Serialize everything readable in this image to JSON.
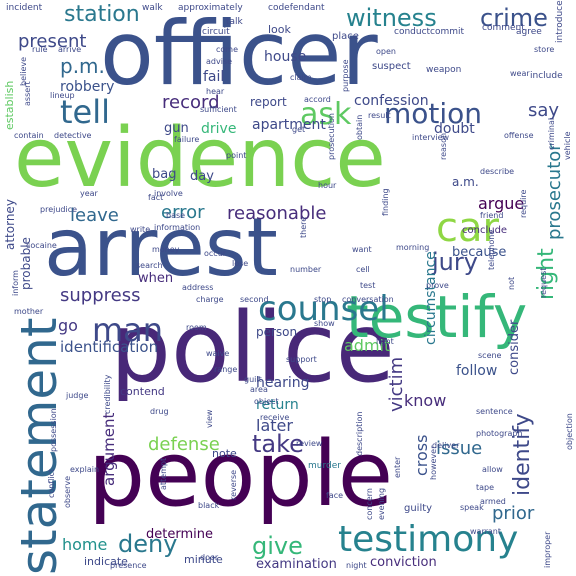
{
  "palette": {
    "dark_purple": "#440154",
    "purple": "#472c7a",
    "indigo": "#3b528b",
    "blue": "#2c728e",
    "teal": "#21908d",
    "green_teal": "#27ad81",
    "green": "#5cc863",
    "lime": "#aadc32",
    "yellow_green": "#d8e219"
  },
  "words": [
    {
      "text": "officer",
      "size": 88,
      "rot": 0,
      "color": "#3b528b"
    },
    {
      "text": "evidence",
      "size": 82,
      "rot": 0,
      "color": "#7ad151"
    },
    {
      "text": "arrest",
      "size": 80,
      "rot": 0,
      "color": "#3b528b"
    },
    {
      "text": "police",
      "size": 96,
      "rot": 0,
      "color": "#482878"
    },
    {
      "text": "people",
      "size": 90,
      "rot": 0,
      "color": "#440154"
    },
    {
      "text": "testify",
      "size": 58,
      "rot": 0,
      "color": "#35b779"
    },
    {
      "text": "statement",
      "size": 50,
      "rot": -90,
      "color": "#31688e"
    },
    {
      "text": "testimony",
      "size": 36,
      "rot": 0,
      "color": "#26828e"
    },
    {
      "text": "car",
      "size": 40,
      "rot": 0,
      "color": "#8fd744"
    },
    {
      "text": "counsel",
      "size": 34,
      "rot": 0,
      "color": "#2a788e"
    },
    {
      "text": "man",
      "size": 32,
      "rot": 0,
      "color": "#3e4989"
    },
    {
      "text": "tell",
      "size": 32,
      "rot": 0,
      "color": "#31688e"
    },
    {
      "text": "motion",
      "size": 28,
      "rot": 0,
      "color": "#3b528b"
    },
    {
      "text": "ask",
      "size": 30,
      "rot": 0,
      "color": "#5ec962"
    },
    {
      "text": "crime",
      "size": 24,
      "rot": 0,
      "color": "#3b528b"
    },
    {
      "text": "witness",
      "size": 24,
      "rot": 0,
      "color": "#26828e"
    },
    {
      "text": "station",
      "size": 22,
      "rot": 0,
      "color": "#2a788e"
    },
    {
      "text": "jury",
      "size": 24,
      "rot": 0,
      "color": "#3e4989"
    },
    {
      "text": "deny",
      "size": 24,
      "rot": 0,
      "color": "#2a788e"
    },
    {
      "text": "give",
      "size": 24,
      "rot": 0,
      "color": "#35b779"
    },
    {
      "text": "take",
      "size": 24,
      "rot": 0,
      "color": "#443983"
    },
    {
      "text": "reasonable",
      "size": 18,
      "rot": 0,
      "color": "#472d7b"
    },
    {
      "text": "identify",
      "size": 22,
      "rot": -90,
      "color": "#3e4989"
    },
    {
      "text": "right",
      "size": 22,
      "rot": -90,
      "color": "#35b779"
    },
    {
      "text": "prosecutor",
      "size": 18,
      "rot": -90,
      "color": "#2a788e"
    },
    {
      "text": "victim",
      "size": 18,
      "rot": -90,
      "color": "#443983"
    },
    {
      "text": "suppress",
      "size": 18,
      "rot": 0,
      "color": "#443983"
    },
    {
      "text": "record",
      "size": 18,
      "rot": 0,
      "color": "#472d7b"
    },
    {
      "text": "p.m.",
      "size": 20,
      "rot": 0,
      "color": "#31688e"
    },
    {
      "text": "present",
      "size": 18,
      "rot": 0,
      "color": "#3e4989"
    },
    {
      "text": "leave",
      "size": 18,
      "rot": 0,
      "color": "#31688e"
    },
    {
      "text": "error",
      "size": 18,
      "rot": 0,
      "color": "#2a788e"
    },
    {
      "text": "argue",
      "size": 16,
      "rot": 0,
      "color": "#440154"
    },
    {
      "text": "prior",
      "size": 18,
      "rot": 0,
      "color": "#31688e"
    },
    {
      "text": "know",
      "size": 16,
      "rot": 0,
      "color": "#472d7b"
    },
    {
      "text": "issue",
      "size": 18,
      "rot": 0,
      "color": "#31688e"
    },
    {
      "text": "admit",
      "size": 16,
      "rot": 0,
      "color": "#5ec962"
    },
    {
      "text": "defense",
      "size": 18,
      "rot": 0,
      "color": "#7ad151"
    },
    {
      "text": "home",
      "size": 16,
      "rot": 0,
      "color": "#21918c"
    },
    {
      "text": "cross",
      "size": 16,
      "rot": -90,
      "color": "#3b528b"
    },
    {
      "text": "consider",
      "size": 13,
      "rot": -90,
      "color": "#3e4989"
    },
    {
      "text": "hearing",
      "size": 14,
      "rot": 0,
      "color": "#3e4989"
    },
    {
      "text": "return",
      "size": 14,
      "rot": 0,
      "color": "#26828e"
    },
    {
      "text": "later",
      "size": 16,
      "rot": 0,
      "color": "#3e4989"
    },
    {
      "text": "identification",
      "size": 15,
      "rot": 0,
      "color": "#3b528b"
    },
    {
      "text": "argument",
      "size": 15,
      "rot": -90,
      "color": "#472d7b"
    },
    {
      "text": "circumstance",
      "size": 14,
      "rot": -90,
      "color": "#2a788e"
    },
    {
      "text": "confession",
      "size": 14,
      "rot": 0,
      "color": "#3e4989"
    },
    {
      "text": "robbery",
      "size": 14,
      "rot": 0,
      "color": "#3b528b"
    },
    {
      "text": "fail",
      "size": 14,
      "rot": 0,
      "color": "#3e4989"
    },
    {
      "text": "house",
      "size": 14,
      "rot": 0,
      "color": "#3e4989"
    },
    {
      "text": "apartment",
      "size": 14,
      "rot": 0,
      "color": "#3e4989"
    },
    {
      "text": "say",
      "size": 18,
      "rot": 0,
      "color": "#3e4989"
    },
    {
      "text": "drive",
      "size": 14,
      "rot": 0,
      "color": "#35b779"
    },
    {
      "text": "doubt",
      "size": 14,
      "rot": 0,
      "color": "#3e4989"
    },
    {
      "text": "because",
      "size": 13,
      "rot": 0,
      "color": "#3b528b"
    },
    {
      "text": "follow",
      "size": 14,
      "rot": 0,
      "color": "#3b528b"
    },
    {
      "text": "determine",
      "size": 13,
      "rot": 0,
      "color": "#440154"
    },
    {
      "text": "examination",
      "size": 13,
      "rot": 0,
      "color": "#443983"
    },
    {
      "text": "conviction",
      "size": 13,
      "rot": 0,
      "color": "#472d7b"
    },
    {
      "text": "go",
      "size": 16,
      "rot": 0,
      "color": "#443983"
    },
    {
      "text": "when",
      "size": 13,
      "rot": 0,
      "color": "#472d7b"
    },
    {
      "text": "bag",
      "size": 13,
      "rot": 0,
      "color": "#3e4989"
    },
    {
      "text": "day",
      "size": 13,
      "rot": 0,
      "color": "#3e4989"
    },
    {
      "text": "gun",
      "size": 13,
      "rot": 0,
      "color": "#3e4989"
    },
    {
      "text": "a.m.",
      "size": 12,
      "rot": 0,
      "color": "#3e4989"
    },
    {
      "text": "report",
      "size": 12,
      "rot": 0,
      "color": "#3e4989"
    },
    {
      "text": "probable",
      "size": 12,
      "rot": -90,
      "color": "#3e4989"
    },
    {
      "text": "establish",
      "size": 11,
      "rot": -90,
      "color": "#5ec962"
    },
    {
      "text": "attorney",
      "size": 12,
      "rot": -90,
      "color": "#3e4989"
    },
    {
      "text": "person",
      "size": 12,
      "rot": 0,
      "color": "#3e4989"
    },
    {
      "text": "conclude",
      "size": 10,
      "rot": 0,
      "color": "#472d7b"
    },
    {
      "text": "contend",
      "size": 11,
      "rot": 0,
      "color": "#443983"
    },
    {
      "text": "indicate",
      "size": 11,
      "rot": 0,
      "color": "#3e4989"
    },
    {
      "text": "note",
      "size": 11,
      "rot": 0,
      "color": "#3e4989"
    },
    {
      "text": "guilty",
      "size": 10,
      "rot": 0,
      "color": "#3e4989"
    },
    {
      "text": "murder",
      "size": 9,
      "rot": 0,
      "color": "#2a788e"
    },
    {
      "text": "minute",
      "size": 11,
      "rot": 0,
      "color": "#3e4989"
    },
    {
      "text": "look",
      "size": 11,
      "rot": 0,
      "color": "#3e4989"
    },
    {
      "text": "place",
      "size": 10,
      "rot": 0,
      "color": "#3e4989"
    },
    {
      "text": "suspect",
      "size": 10,
      "rot": 0,
      "color": "#3e4989"
    },
    {
      "text": "weapon",
      "size": 9,
      "rot": 0,
      "color": "#3e4989"
    },
    {
      "text": "include",
      "size": 9,
      "rot": 0,
      "color": "#3e4989"
    },
    {
      "text": "introduce",
      "size": 9,
      "rot": -90,
      "color": "#3e4989"
    },
    {
      "text": "agree",
      "size": 9,
      "rot": 0,
      "color": "#3e4989"
    },
    {
      "text": "comment",
      "size": 9,
      "rot": 0,
      "color": "#3e4989"
    },
    {
      "text": "incident",
      "size": 9,
      "rot": 0,
      "color": "#3e4989"
    },
    {
      "text": "walk",
      "size": 9,
      "rot": 0,
      "color": "#3e4989"
    },
    {
      "text": "approximately",
      "size": 9,
      "rot": 0,
      "color": "#3e4989"
    },
    {
      "text": "codefendant",
      "size": 9,
      "rot": 0,
      "color": "#3e4989"
    },
    {
      "text": "talk",
      "size": 9,
      "rot": 0,
      "color": "#3e4989"
    },
    {
      "text": "circuit",
      "size": 9,
      "rot": 0,
      "color": "#3e4989"
    },
    {
      "text": "conduct",
      "size": 9,
      "rot": 0,
      "color": "#3e4989"
    },
    {
      "text": "commit",
      "size": 9,
      "rot": 0,
      "color": "#3e4989"
    },
    {
      "text": "come",
      "size": 8,
      "rot": 0,
      "color": "#3e4989"
    },
    {
      "text": "advise",
      "size": 8,
      "rot": 0,
      "color": "#3e4989"
    },
    {
      "text": "rule",
      "size": 8,
      "rot": 0,
      "color": "#3e4989"
    },
    {
      "text": "arrive",
      "size": 8,
      "rot": 0,
      "color": "#3e4989"
    },
    {
      "text": "open",
      "size": 8,
      "rot": 0,
      "color": "#3e4989"
    },
    {
      "text": "store",
      "size": 8,
      "rot": 0,
      "color": "#3e4989"
    },
    {
      "text": "wear",
      "size": 8,
      "rot": 0,
      "color": "#3e4989"
    },
    {
      "text": "claim",
      "size": 8,
      "rot": 0,
      "color": "#3e4989"
    },
    {
      "text": "purpose",
      "size": 8,
      "rot": -90,
      "color": "#3e4989"
    },
    {
      "text": "believe",
      "size": 8,
      "rot": -90,
      "color": "#3e4989"
    },
    {
      "text": "assert",
      "size": 8,
      "rot": -90,
      "color": "#3e4989"
    },
    {
      "text": "lineup",
      "size": 8,
      "rot": 0,
      "color": "#3e4989"
    },
    {
      "text": "hear",
      "size": 8,
      "rot": 0,
      "color": "#3e4989"
    },
    {
      "text": "sufficient",
      "size": 8,
      "rot": 0,
      "color": "#3e4989"
    },
    {
      "text": "accord",
      "size": 8,
      "rot": 0,
      "color": "#3e4989"
    },
    {
      "text": "result",
      "size": 8,
      "rot": 0,
      "color": "#3e4989"
    },
    {
      "text": "interview",
      "size": 8,
      "rot": 0,
      "color": "#3e4989"
    },
    {
      "text": "offense",
      "size": 8,
      "rot": 0,
      "color": "#3e4989"
    },
    {
      "text": "criminal",
      "size": 8,
      "rot": -90,
      "color": "#3e4989"
    },
    {
      "text": "vehicle",
      "size": 8,
      "rot": -90,
      "color": "#3e4989"
    },
    {
      "text": "contain",
      "size": 8,
      "rot": 0,
      "color": "#3e4989"
    },
    {
      "text": "detective",
      "size": 8,
      "rot": 0,
      "color": "#3e4989"
    },
    {
      "text": "failure",
      "size": 8,
      "rot": 0,
      "color": "#3e4989"
    },
    {
      "text": "get",
      "size": 8,
      "rot": 0,
      "color": "#3e4989"
    },
    {
      "text": "obtain",
      "size": 8,
      "rot": -90,
      "color": "#3e4989"
    },
    {
      "text": "prosecution",
      "size": 8,
      "rot": -90,
      "color": "#3e4989"
    },
    {
      "text": "point",
      "size": 8,
      "rot": 0,
      "color": "#3e4989"
    },
    {
      "text": "reason",
      "size": 8,
      "rot": -90,
      "color": "#3e4989"
    },
    {
      "text": "describe",
      "size": 8,
      "rot": 0,
      "color": "#3e4989"
    },
    {
      "text": "hour",
      "size": 8,
      "rot": 0,
      "color": "#3e4989"
    },
    {
      "text": "finding",
      "size": 8,
      "rot": -90,
      "color": "#3e4989"
    },
    {
      "text": "year",
      "size": 8,
      "rot": 0,
      "color": "#3e4989"
    },
    {
      "text": "prejudice",
      "size": 8,
      "rot": 0,
      "color": "#3e4989"
    },
    {
      "text": "involve",
      "size": 8,
      "rot": 0,
      "color": "#3e4989"
    },
    {
      "text": "base",
      "size": 8,
      "rot": 0,
      "color": "#3e4989"
    },
    {
      "text": "friend",
      "size": 8,
      "rot": 0,
      "color": "#3e4989"
    },
    {
      "text": "write",
      "size": 8,
      "rot": 0,
      "color": "#3e4989"
    },
    {
      "text": "information",
      "size": 8,
      "rot": 0,
      "color": "#3e4989"
    },
    {
      "text": "require",
      "size": 8,
      "rot": -90,
      "color": "#3e4989"
    },
    {
      "text": "cocaine",
      "size": 8,
      "rot": 0,
      "color": "#3e4989"
    },
    {
      "text": "telephone",
      "size": 8,
      "rot": -90,
      "color": "#3e4989"
    },
    {
      "text": "there",
      "size": 8,
      "rot": -90,
      "color": "#3e4989"
    },
    {
      "text": "want",
      "size": 8,
      "rot": 0,
      "color": "#3e4989"
    },
    {
      "text": "morning",
      "size": 8,
      "rot": 0,
      "color": "#3e4989"
    },
    {
      "text": "money",
      "size": 8,
      "rot": 0,
      "color": "#3e4989"
    },
    {
      "text": "occur",
      "size": 8,
      "rot": 0,
      "color": "#3e4989"
    },
    {
      "text": "lose",
      "size": 8,
      "rot": 0,
      "color": "#3e4989"
    },
    {
      "text": "search",
      "size": 8,
      "rot": 0,
      "color": "#3e4989"
    },
    {
      "text": "number",
      "size": 8,
      "rot": 0,
      "color": "#3e4989"
    },
    {
      "text": "cell",
      "size": 8,
      "rot": 0,
      "color": "#3e4989"
    },
    {
      "text": "inform",
      "size": 8,
      "rot": -90,
      "color": "#3e4989"
    },
    {
      "text": "address",
      "size": 8,
      "rot": 0,
      "color": "#3e4989"
    },
    {
      "text": "charge",
      "size": 8,
      "rot": 0,
      "color": "#3e4989"
    },
    {
      "text": "test",
      "size": 8,
      "rot": 0,
      "color": "#3e4989"
    },
    {
      "text": "prove",
      "size": 8,
      "rot": 0,
      "color": "#3e4989"
    },
    {
      "text": "request",
      "size": 8,
      "rot": -90,
      "color": "#3e4989"
    },
    {
      "text": "not",
      "size": 8,
      "rot": -90,
      "color": "#3e4989"
    },
    {
      "text": "second",
      "size": 8,
      "rot": 0,
      "color": "#3e4989"
    },
    {
      "text": "stop",
      "size": 8,
      "rot": 0,
      "color": "#3e4989"
    },
    {
      "text": "conversation",
      "size": 8,
      "rot": 0,
      "color": "#3e4989"
    },
    {
      "text": "mother",
      "size": 8,
      "rot": 0,
      "color": "#3e4989"
    },
    {
      "text": "room",
      "size": 8,
      "rot": 0,
      "color": "#3e4989"
    },
    {
      "text": "show",
      "size": 8,
      "rot": 0,
      "color": "#3e4989"
    },
    {
      "text": "light",
      "size": 8,
      "rot": 0,
      "color": "#3e4989"
    },
    {
      "text": "support",
      "size": 8,
      "rot": 0,
      "color": "#3e4989"
    },
    {
      "text": "scene",
      "size": 8,
      "rot": 0,
      "color": "#3e4989"
    },
    {
      "text": "judge",
      "size": 8,
      "rot": 0,
      "color": "#3e4989"
    },
    {
      "text": "credibility",
      "size": 8,
      "rot": -90,
      "color": "#3e4989"
    },
    {
      "text": "guilt",
      "size": 8,
      "rot": 0,
      "color": "#3e4989"
    },
    {
      "text": "area",
      "size": 8,
      "rot": 0,
      "color": "#3e4989"
    },
    {
      "text": "object",
      "size": 8,
      "rot": 0,
      "color": "#3e4989"
    },
    {
      "text": "range",
      "size": 8,
      "rot": 0,
      "color": "#3e4989"
    },
    {
      "text": "receive",
      "size": 8,
      "rot": 0,
      "color": "#3e4989"
    },
    {
      "text": "review",
      "size": 8,
      "rot": 0,
      "color": "#3e4989"
    },
    {
      "text": "sentence",
      "size": 8,
      "rot": 0,
      "color": "#3e4989"
    },
    {
      "text": "photograph",
      "size": 8,
      "rot": 0,
      "color": "#3e4989"
    },
    {
      "text": "drug",
      "size": 8,
      "rot": 0,
      "color": "#3e4989"
    },
    {
      "text": "view",
      "size": 8,
      "rot": -90,
      "color": "#3e4989"
    },
    {
      "text": "possession",
      "size": 8,
      "rot": -90,
      "color": "#3e4989"
    },
    {
      "text": "description",
      "size": 8,
      "rot": -90,
      "color": "#3e4989"
    },
    {
      "text": "deliver",
      "size": 8,
      "rot": 0,
      "color": "#3e4989"
    },
    {
      "text": "objection",
      "size": 8,
      "rot": -90,
      "color": "#3e4989"
    },
    {
      "text": "explain",
      "size": 8,
      "rot": 0,
      "color": "#3e4989"
    },
    {
      "text": "allow",
      "size": 8,
      "rot": 0,
      "color": "#3e4989"
    },
    {
      "text": "enter",
      "size": 8,
      "rot": -90,
      "color": "#3e4989"
    },
    {
      "text": "however",
      "size": 8,
      "rot": -90,
      "color": "#3e4989"
    },
    {
      "text": "tape",
      "size": 8,
      "rot": 0,
      "color": "#3e4989"
    },
    {
      "text": "armed",
      "size": 8,
      "rot": 0,
      "color": "#3e4989"
    },
    {
      "text": "attempt",
      "size": 8,
      "rot": -90,
      "color": "#3e4989"
    },
    {
      "text": "conflict",
      "size": 8,
      "rot": -90,
      "color": "#3e4989"
    },
    {
      "text": "observe",
      "size": 8,
      "rot": -90,
      "color": "#3e4989"
    },
    {
      "text": "reverse",
      "size": 8,
      "rot": -90,
      "color": "#3e4989"
    },
    {
      "text": "face",
      "size": 8,
      "rot": 0,
      "color": "#3e4989"
    },
    {
      "text": "concern",
      "size": 8,
      "rot": -90,
      "color": "#3e4989"
    },
    {
      "text": "evening",
      "size": 8,
      "rot": -90,
      "color": "#3e4989"
    },
    {
      "text": "speak",
      "size": 8,
      "rot": 0,
      "color": "#3e4989"
    },
    {
      "text": "warrant",
      "size": 8,
      "rot": 0,
      "color": "#3e4989"
    },
    {
      "text": "black",
      "size": 8,
      "rot": 0,
      "color": "#3e4989"
    },
    {
      "text": "door",
      "size": 8,
      "rot": 0,
      "color": "#3e4989"
    },
    {
      "text": "presence",
      "size": 8,
      "rot": 0,
      "color": "#3e4989"
    },
    {
      "text": "night",
      "size": 8,
      "rot": 0,
      "color": "#3e4989"
    },
    {
      "text": "improper",
      "size": 8,
      "rot": -90,
      "color": "#3e4989"
    },
    {
      "text": "waive",
      "size": 8,
      "rot": 0,
      "color": "#3e4989"
    },
    {
      "text": "fact",
      "size": 8,
      "rot": 0,
      "color": "#3e4989"
    }
  ]
}
